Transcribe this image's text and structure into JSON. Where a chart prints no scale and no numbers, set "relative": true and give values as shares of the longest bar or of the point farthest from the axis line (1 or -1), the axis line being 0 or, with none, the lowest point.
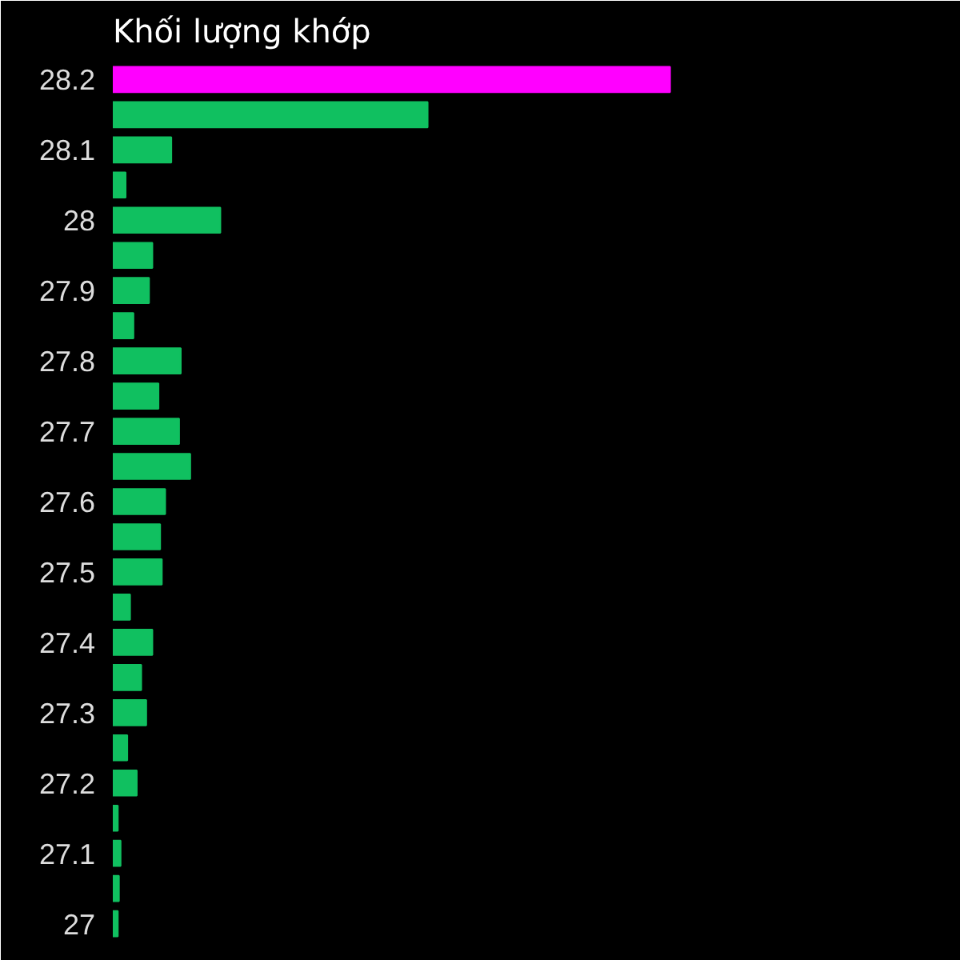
{
  "chart_data": {
    "type": "bar",
    "orientation": "horizontal",
    "relative": true,
    "title": "Khối lượng khớp",
    "categories": [
      "28.2",
      null,
      "28.1",
      null,
      "28",
      null,
      "27.9",
      null,
      "27.8",
      null,
      "27.7",
      null,
      "27.6",
      null,
      "27.5",
      null,
      "27.4",
      null,
      "27.3",
      null,
      "27.2",
      null,
      "27.1",
      null,
      "27"
    ],
    "values": [
      1,
      0.565,
      0.105,
      0.023,
      0.193,
      0.071,
      0.065,
      0.037,
      0.122,
      0.082,
      0.119,
      0.139,
      0.094,
      0.085,
      0.088,
      0.031,
      0.071,
      0.051,
      0.06,
      0.026,
      0.043,
      0.009,
      0.014,
      0.011,
      0.009
    ],
    "colors": [
      "#ff00ff",
      "#10c060",
      "#10c060",
      "#10c060",
      "#10c060",
      "#10c060",
      "#10c060",
      "#10c060",
      "#10c060",
      "#10c060",
      "#10c060",
      "#10c060",
      "#10c060",
      "#10c060",
      "#10c060",
      "#10c060",
      "#10c060",
      "#10c060",
      "#10c060",
      "#10c060",
      "#10c060",
      "#10c060",
      "#10c060",
      "#10c060",
      "#10c060"
    ]
  }
}
